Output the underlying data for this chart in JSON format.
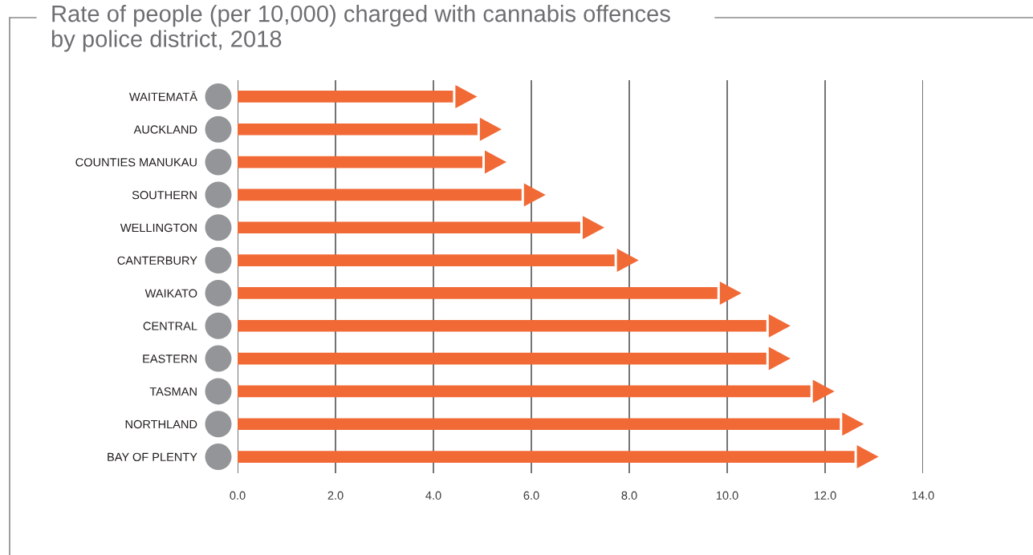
{
  "chart_data": {
    "type": "bar",
    "orientation": "horizontal",
    "title": "Rate of people (per 10,000) charged with cannabis offences\nby police district, 2018",
    "categories": [
      "WAITEMATĀ",
      "AUCKLAND",
      "COUNTIES MANUKAU",
      "SOUTHERN",
      "WELLINGTON",
      "CANTERBURY",
      "WAIKATO",
      "CENTRAL",
      "EASTERN",
      "TASMAN",
      "NORTHLAND",
      "BAY OF PLENTY"
    ],
    "values": [
      4.4,
      4.9,
      5.0,
      5.8,
      7.0,
      7.7,
      9.8,
      10.8,
      10.8,
      11.7,
      12.3,
      12.6
    ],
    "color": "#f16935",
    "xlim": [
      0,
      14
    ],
    "xticks": [
      {
        "value": 0,
        "label": "0.0"
      },
      {
        "value": 2,
        "label": "2.0"
      },
      {
        "value": 4,
        "label": "4.0"
      },
      {
        "value": 6,
        "label": "6.0"
      },
      {
        "value": 8,
        "label": "8.0"
      },
      {
        "value": 10,
        "label": "10.0"
      },
      {
        "value": 12,
        "label": "12.0"
      },
      {
        "value": 14,
        "label": "14.0"
      }
    ],
    "grid": "x"
  }
}
